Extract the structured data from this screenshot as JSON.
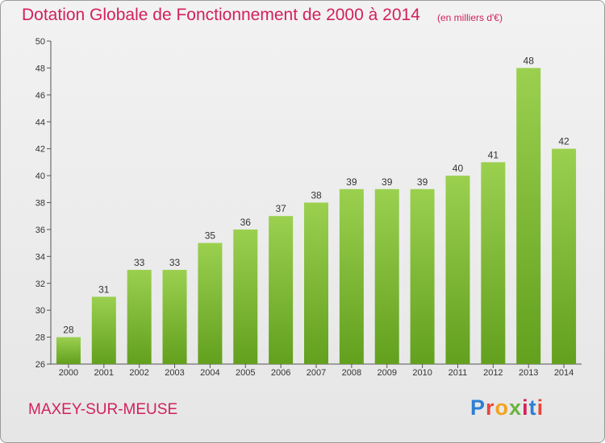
{
  "chart_data": {
    "type": "bar",
    "title": "Dotation Globale de Fonctionnement de 2000 à 2014",
    "unit": "(en milliers d'€)",
    "categories": [
      "2000",
      "2001",
      "2002",
      "2003",
      "2004",
      "2005",
      "2006",
      "2007",
      "2008",
      "2009",
      "2010",
      "2011",
      "2012",
      "2013",
      "2014"
    ],
    "values": [
      28,
      31,
      33,
      33,
      35,
      36,
      37,
      38,
      39,
      39,
      39,
      40,
      41,
      48,
      42
    ],
    "ylim": [
      26,
      50
    ],
    "yticks": [
      26,
      28,
      30,
      32,
      34,
      36,
      38,
      40,
      42,
      44,
      46,
      48,
      50
    ],
    "grid": false,
    "legend": "none",
    "colors": {
      "bar_top": "#9bd04f",
      "bar_bottom": "#62a01e",
      "text_accent": "#d2215b"
    }
  },
  "footer": {
    "commune": "MAXEY-SUR-MEUSE",
    "logo_letters": [
      "P",
      "r",
      "o",
      "x",
      "i",
      "t",
      "i"
    ]
  }
}
